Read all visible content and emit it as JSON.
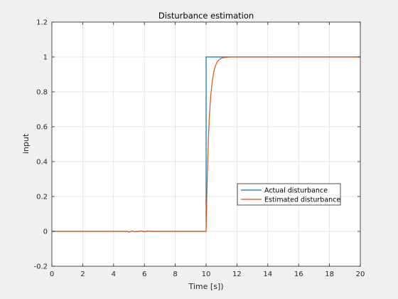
{
  "chart_data": {
    "type": "line",
    "title": "Disturbance estimation",
    "xlabel": "Time [s])",
    "ylabel": "input",
    "xlim": [
      0,
      20
    ],
    "ylim": [
      -0.2,
      1.2
    ],
    "xticks": [
      0,
      2,
      4,
      6,
      8,
      10,
      12,
      14,
      16,
      18,
      20
    ],
    "yticks": [
      -0.2,
      0,
      0.2,
      0.4,
      0.6,
      0.8,
      1,
      1.2
    ],
    "xtick_labels": [
      "0",
      "2",
      "4",
      "6",
      "8",
      "10",
      "12",
      "14",
      "16",
      "18",
      "20"
    ],
    "ytick_labels": [
      "-0.2",
      "0",
      "0.2",
      "0.4",
      "0.6",
      "0.8",
      "1",
      "1.2"
    ],
    "grid": true,
    "legend_position": "lower-right",
    "series": [
      {
        "name": "Actual disturbance",
        "color": "#0072bd",
        "x": [
          0,
          4.9,
          5.0,
          5.2,
          5.4,
          5.6,
          5.8,
          6.0,
          6.2,
          6.4,
          10.0,
          10.0,
          11.1,
          20
        ],
        "y": [
          0,
          0,
          -0.004,
          0.002,
          -0.002,
          0,
          0.002,
          -0.002,
          0.002,
          0,
          0,
          1,
          1,
          1
        ]
      },
      {
        "name": "Estimated disturbance",
        "color": "#d95319",
        "x": [
          0,
          4.9,
          5.0,
          5.2,
          5.4,
          5.6,
          5.8,
          6.0,
          6.2,
          6.4,
          10.0,
          10.05,
          10.1,
          10.15,
          10.2,
          10.3,
          10.4,
          10.5,
          10.6,
          10.7,
          10.8,
          10.9,
          11.0,
          11.2,
          11.4,
          11.6,
          12.0,
          20
        ],
        "y": [
          0,
          0,
          -0.004,
          0.002,
          -0.002,
          0,
          0.002,
          -0.002,
          0.002,
          0,
          0,
          0.22,
          0.39,
          0.53,
          0.64,
          0.78,
          0.86,
          0.915,
          0.948,
          0.968,
          0.981,
          0.988,
          0.993,
          0.997,
          0.999,
          1,
          1,
          1
        ]
      }
    ]
  }
}
